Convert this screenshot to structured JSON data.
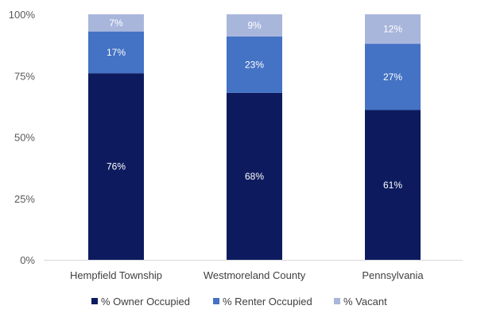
{
  "chart_data": {
    "type": "bar",
    "stacked": true,
    "categories": [
      "Hempfield Township",
      "Westmoreland County",
      "Pennsylvania"
    ],
    "series": [
      {
        "name": "% Owner Occupied",
        "values": [
          76,
          68,
          61
        ],
        "labels": [
          "76%",
          "68%",
          "61%"
        ],
        "color": "#0d1b5e"
      },
      {
        "name": "% Renter Occupied",
        "values": [
          17,
          23,
          27
        ],
        "labels": [
          "17%",
          "23%",
          "27%"
        ],
        "color": "#4472c4"
      },
      {
        "name": "% Vacant",
        "values": [
          7,
          9,
          12
        ],
        "labels": [
          "7%",
          "9%",
          "12%"
        ],
        "color": "#a9b6dc"
      }
    ],
    "y_ticks": [
      0,
      25,
      50,
      75,
      100
    ],
    "y_tick_labels": [
      "0%",
      "25%",
      "50%",
      "75%",
      "100%"
    ],
    "ylim": [
      0,
      100
    ],
    "grid": false,
    "legend_position": "bottom",
    "title": "",
    "xlabel": "",
    "ylabel": ""
  }
}
